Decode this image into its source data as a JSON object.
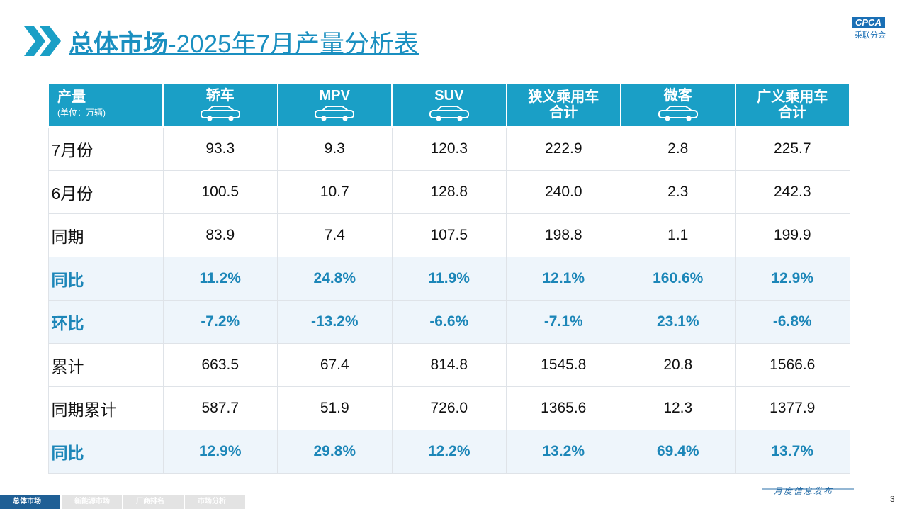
{
  "header": {
    "title_bold": "总体市场",
    "title_rest": "-2025年7月产量分析表",
    "logo": "CPCA",
    "logo_sub": "乘联分会"
  },
  "table": {
    "corner_label": "产量",
    "corner_unit": "(单位：万辆)",
    "columns": [
      [
        "轿车"
      ],
      [
        "MPV"
      ],
      [
        "SUV"
      ],
      [
        "狭义乘用车",
        "合计"
      ],
      [
        "微客"
      ],
      [
        "广义乘用车",
        "合计"
      ]
    ],
    "rows": [
      [
        "7月份",
        "93.3",
        "9.3",
        "120.3",
        "222.9",
        "2.8",
        "225.7"
      ],
      [
        "6月份",
        "100.5",
        "10.7",
        "128.8",
        "240.0",
        "2.3",
        "242.3"
      ],
      [
        "同期",
        "83.9",
        "7.4",
        "107.5",
        "198.8",
        "1.1",
        "199.9"
      ],
      [
        "同比",
        "11.2%",
        "24.8%",
        "11.9%",
        "12.1%",
        "160.6%",
        "12.9%"
      ],
      [
        "环比",
        "-7.2%",
        "-13.2%",
        "-6.6%",
        "-7.1%",
        "23.1%",
        "-6.8%"
      ],
      [
        "累计",
        "663.5",
        "67.4",
        "814.8",
        "1545.8",
        "20.8",
        "1566.6"
      ],
      [
        "同期累计",
        "587.7",
        "51.9",
        "726.0",
        "1365.6",
        "12.3",
        "1377.9"
      ],
      [
        "同比",
        "12.9%",
        "29.8%",
        "12.2%",
        "13.2%",
        "69.4%",
        "13.7%"
      ]
    ]
  },
  "footer": {
    "tabs": [
      "总体市场",
      "新能源市场",
      "厂商排名",
      "市场分析"
    ],
    "release": "月度信息发布",
    "page": "3"
  }
}
